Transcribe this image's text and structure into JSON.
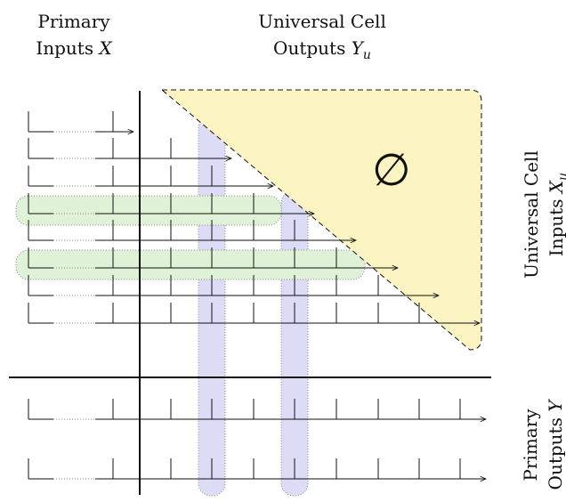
{
  "labels": {
    "primary_inputs": {
      "line1": "Primary",
      "line2_text": "Inputs ",
      "line2_var": "X"
    },
    "universal_outputs": {
      "line1": "Universal Cell",
      "line2_text": "Outputs ",
      "line2_var": "Y",
      "line2_sub": "u"
    },
    "universal_inputs": {
      "line1": "Universal Cell",
      "line2_text": "Inputs ",
      "line2_var": "X",
      "line2_sub": "u"
    },
    "primary_outputs": {
      "line1": "Primary",
      "line2_text": "Outputs ",
      "line2_var": "Y"
    },
    "empty_set": "∅"
  },
  "colors": {
    "triangle_fill": "#fbf4c2",
    "vertical_band": "#dcdcf6",
    "horizontal_band": "#dff2d8",
    "line": "#111111",
    "dotted_stub": "#888888"
  },
  "structure": {
    "universal_rows": 8,
    "primary_output_rows": 2,
    "primary_input_columns": 2,
    "universal_output_columns": 8,
    "highlighted_columns": [
      1,
      3
    ],
    "highlighted_rows": [
      3,
      5
    ]
  }
}
